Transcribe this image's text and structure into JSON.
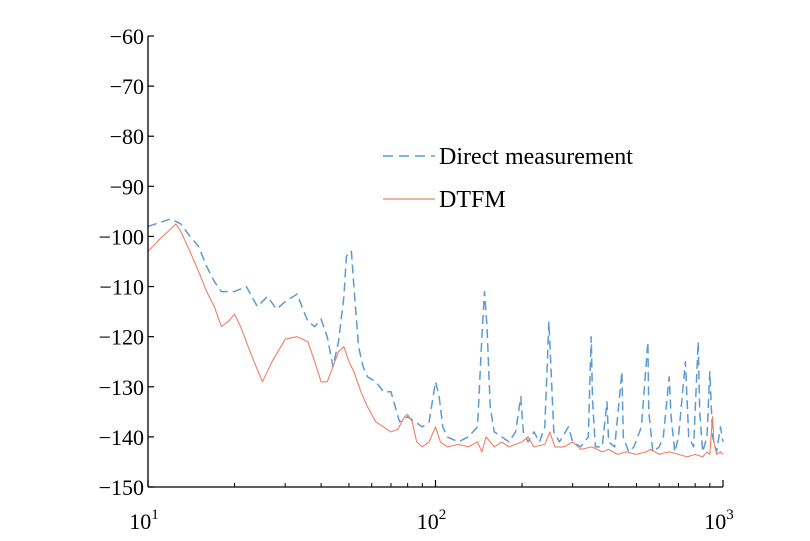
{
  "chart_data": {
    "type": "line",
    "xscale": "log",
    "xlim": [
      10,
      1000
    ],
    "ylim": [
      -150,
      -60
    ],
    "grid": false,
    "legend_position": "upper-right",
    "x_ticks": [
      {
        "value": 10,
        "base": "10",
        "exp": "1"
      },
      {
        "value": 100,
        "base": "10",
        "exp": "2"
      },
      {
        "value": 1000,
        "base": "10",
        "exp": "3"
      }
    ],
    "y_ticks": [
      {
        "value": -60,
        "label": "−60"
      },
      {
        "value": -70,
        "label": "−70"
      },
      {
        "value": -80,
        "label": "−80"
      },
      {
        "value": -90,
        "label": "−90"
      },
      {
        "value": -100,
        "label": "−100"
      },
      {
        "value": -110,
        "label": "−110"
      },
      {
        "value": -120,
        "label": "−120"
      },
      {
        "value": -130,
        "label": "−130"
      },
      {
        "value": -140,
        "label": "−140"
      },
      {
        "value": -150,
        "label": "−150"
      }
    ],
    "series": [
      {
        "name": "Direct measurement",
        "color": "#5b9bd5",
        "dash": "dashed",
        "points": [
          [
            10,
            -98
          ],
          [
            12,
            -96.5
          ],
          [
            13,
            -97.5
          ],
          [
            14,
            -100
          ],
          [
            15,
            -102
          ],
          [
            16,
            -106
          ],
          [
            17,
            -109
          ],
          [
            18,
            -111
          ],
          [
            20,
            -111
          ],
          [
            22,
            -110
          ],
          [
            24,
            -114
          ],
          [
            26,
            -112
          ],
          [
            28,
            -114.5
          ],
          [
            30,
            -113
          ],
          [
            33,
            -111.5
          ],
          [
            36,
            -117
          ],
          [
            38,
            -118
          ],
          [
            40,
            -116.5
          ],
          [
            42,
            -120
          ],
          [
            44,
            -126
          ],
          [
            46,
            -121
          ],
          [
            48,
            -112
          ],
          [
            49,
            -104
          ],
          [
            50,
            -103
          ],
          [
            51,
            -103
          ],
          [
            52,
            -110
          ],
          [
            54,
            -122
          ],
          [
            56,
            -126
          ],
          [
            58,
            -128
          ],
          [
            62,
            -129
          ],
          [
            66,
            -131
          ],
          [
            70,
            -131
          ],
          [
            75,
            -137
          ],
          [
            80,
            -136
          ],
          [
            85,
            -137
          ],
          [
            90,
            -138
          ],
          [
            95,
            -137
          ],
          [
            100,
            -129
          ],
          [
            103,
            -132
          ],
          [
            106,
            -138
          ],
          [
            110,
            -140
          ],
          [
            120,
            -141
          ],
          [
            130,
            -140
          ],
          [
            140,
            -138
          ],
          [
            145,
            -120
          ],
          [
            148,
            -111
          ],
          [
            151,
            -118
          ],
          [
            155,
            -134
          ],
          [
            160,
            -139
          ],
          [
            170,
            -140
          ],
          [
            180,
            -141
          ],
          [
            190,
            -139
          ],
          [
            198,
            -132
          ],
          [
            202,
            -139
          ],
          [
            210,
            -141
          ],
          [
            220,
            -139
          ],
          [
            230,
            -141
          ],
          [
            240,
            -138
          ],
          [
            248,
            -117
          ],
          [
            252,
            -126
          ],
          [
            258,
            -139
          ],
          [
            270,
            -141
          ],
          [
            290,
            -138
          ],
          [
            300,
            -141
          ],
          [
            320,
            -142
          ],
          [
            340,
            -140
          ],
          [
            348,
            -120
          ],
          [
            352,
            -133
          ],
          [
            360,
            -142
          ],
          [
            380,
            -142
          ],
          [
            395,
            -133
          ],
          [
            400,
            -141
          ],
          [
            420,
            -142
          ],
          [
            440,
            -130
          ],
          [
            445,
            -127
          ],
          [
            450,
            -140
          ],
          [
            470,
            -143
          ],
          [
            490,
            -142
          ],
          [
            520,
            -138
          ],
          [
            548,
            -121
          ],
          [
            552,
            -135
          ],
          [
            570,
            -143
          ],
          [
            600,
            -142
          ],
          [
            620,
            -140
          ],
          [
            650,
            -128
          ],
          [
            660,
            -136
          ],
          [
            680,
            -143
          ],
          [
            700,
            -140
          ],
          [
            740,
            -125
          ],
          [
            760,
            -140
          ],
          [
            790,
            -142
          ],
          [
            820,
            -121
          ],
          [
            830,
            -135
          ],
          [
            850,
            -143
          ],
          [
            880,
            -140
          ],
          [
            900,
            -127
          ],
          [
            920,
            -140
          ],
          [
            950,
            -143
          ],
          [
            980,
            -138
          ],
          [
            1000,
            -141
          ]
        ]
      },
      {
        "name": "DTFM",
        "color": "#ee7f64",
        "dash": "solid",
        "points": [
          [
            10,
            -103
          ],
          [
            11,
            -100.5
          ],
          [
            12,
            -98.5
          ],
          [
            12.5,
            -97.5
          ],
          [
            13,
            -99
          ],
          [
            14,
            -103
          ],
          [
            15,
            -107
          ],
          [
            16,
            -111
          ],
          [
            17,
            -114
          ],
          [
            18,
            -118
          ],
          [
            19,
            -117
          ],
          [
            20,
            -115.5
          ],
          [
            21,
            -118
          ],
          [
            23,
            -124
          ],
          [
            25,
            -129
          ],
          [
            27,
            -125
          ],
          [
            30,
            -120.5
          ],
          [
            33,
            -120
          ],
          [
            36,
            -121
          ],
          [
            38,
            -125
          ],
          [
            40,
            -129
          ],
          [
            42,
            -129
          ],
          [
            44,
            -126
          ],
          [
            46,
            -123
          ],
          [
            48,
            -122
          ],
          [
            50,
            -125
          ],
          [
            52,
            -127
          ],
          [
            55,
            -131
          ],
          [
            58,
            -134
          ],
          [
            62,
            -137
          ],
          [
            66,
            -138
          ],
          [
            70,
            -139
          ],
          [
            74,
            -138.5
          ],
          [
            78,
            -136
          ],
          [
            80,
            -135.5
          ],
          [
            83,
            -137
          ],
          [
            86,
            -141
          ],
          [
            90,
            -142
          ],
          [
            95,
            -141
          ],
          [
            100,
            -138
          ],
          [
            104,
            -141
          ],
          [
            110,
            -142
          ],
          [
            120,
            -141.5
          ],
          [
            130,
            -142
          ],
          [
            140,
            -141
          ],
          [
            145,
            -143
          ],
          [
            150,
            -140
          ],
          [
            160,
            -142
          ],
          [
            170,
            -141
          ],
          [
            180,
            -142
          ],
          [
            200,
            -141
          ],
          [
            210,
            -140
          ],
          [
            220,
            -142
          ],
          [
            240,
            -141.5
          ],
          [
            250,
            -139
          ],
          [
            260,
            -142
          ],
          [
            280,
            -142
          ],
          [
            300,
            -141
          ],
          [
            320,
            -142.5
          ],
          [
            350,
            -142
          ],
          [
            380,
            -143
          ],
          [
            400,
            -142.5
          ],
          [
            430,
            -143.5
          ],
          [
            460,
            -143
          ],
          [
            500,
            -143.5
          ],
          [
            540,
            -143
          ],
          [
            560,
            -142.5
          ],
          [
            600,
            -143.5
          ],
          [
            650,
            -143
          ],
          [
            700,
            -143.5
          ],
          [
            750,
            -144
          ],
          [
            800,
            -143.5
          ],
          [
            850,
            -144
          ],
          [
            880,
            -143
          ],
          [
            900,
            -143.5
          ],
          [
            910,
            -139.5
          ],
          [
            920,
            -136
          ],
          [
            930,
            -141
          ],
          [
            950,
            -143.5
          ],
          [
            980,
            -143
          ],
          [
            1000,
            -143.5
          ]
        ]
      }
    ]
  }
}
